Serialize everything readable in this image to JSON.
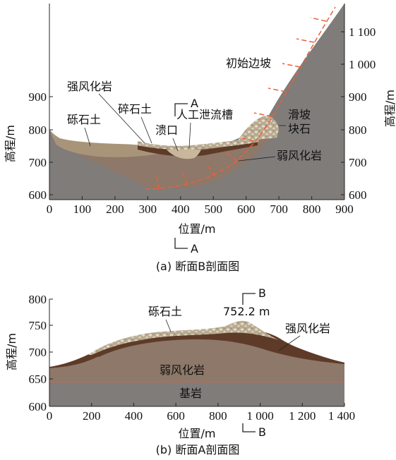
{
  "panel_a": {
    "caption": "(a) 断面B剖面图",
    "xlabel": "位置/m",
    "ylabel_left": "高程/m",
    "ylabel_right": "高程/m",
    "x_ticks": [
      "0",
      "100",
      "200",
      "300",
      "400",
      "500",
      "600",
      "700",
      "800",
      "900"
    ],
    "y_ticks_left": [
      "600",
      "700",
      "800",
      "900"
    ],
    "y_ticks_right": [
      "600",
      "700",
      "800",
      "900",
      "1 000",
      "1 100"
    ],
    "labels": {
      "strong_weathered": "强风化岩",
      "gravel_soil": "砾石土",
      "crushed_soil": "碎石土",
      "breach": "溃口",
      "spillway": "人工泄流槽",
      "initial_slope": "初始边坡",
      "landslide": "滑坡",
      "block_stone": "块石",
      "weak_weathered": "弱风化岩"
    },
    "section_mark": "A"
  },
  "panel_b": {
    "caption": "(b) 断面A剖面图",
    "xlabel": "位置/m",
    "ylabel": "高程/m",
    "x_ticks": [
      "0",
      "200",
      "400",
      "600",
      "800",
      "1 000",
      "1 200",
      "1 400"
    ],
    "y_ticks": [
      "600",
      "650",
      "700",
      "750",
      "800"
    ],
    "labels": {
      "gravel_soil": "砾石土",
      "peak": "752.2 m",
      "strong_weathered": "强风化岩",
      "weak_weathered": "弱风化岩",
      "bedrock": "基岩"
    },
    "section_mark": "B"
  },
  "colors": {
    "bedrock": "#7f7c7a",
    "weak_weathered": "#8d7869",
    "strong_weathered": "#5e3b28",
    "gravel": "#b4a488",
    "dashed": "#e8603c"
  }
}
